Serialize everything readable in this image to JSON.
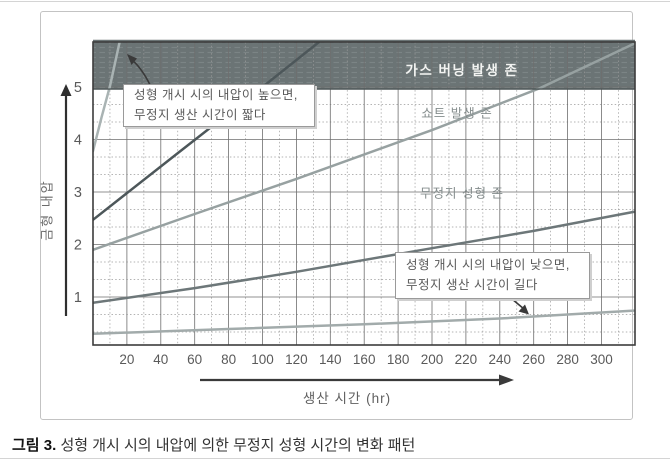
{
  "page": {
    "caption_number": "그림 3.",
    "caption_text": " 성형 개시 시의 내압에 의한 무정지 성형 시간의 변화 패턴"
  },
  "chart_data": {
    "type": "line",
    "title": "",
    "xlabel": "생산 시간 (hr)",
    "ylabel": "금형 내압",
    "xlim": [
      0,
      320
    ],
    "ylim": [
      0,
      5.9
    ],
    "x_ticks": [
      20,
      40,
      60,
      80,
      100,
      120,
      140,
      160,
      180,
      200,
      220,
      240,
      260,
      280,
      300
    ],
    "y_ticks": [
      1,
      2,
      3,
      4,
      5
    ],
    "grid": "major solid lines with dotted minor lines (x every 10 hr, y every 1/3 unit)",
    "legend": "none",
    "zones": [
      {
        "name": "gas-burning-zone",
        "label": "가스 버닝 발생 존",
        "band_y_from": 4.96,
        "band_y_to": 5.9,
        "fill": "#6b7475",
        "label_color": "#f3f4f2"
      },
      {
        "name": "short-shot-zone",
        "label": "쇼트 발생 존",
        "label_at_x": 214,
        "label_at_y": 4.52,
        "label_color": "#858d8d"
      },
      {
        "name": "non-stop-molding-zone",
        "label": "무정지 성형 존",
        "label_at_x": 218,
        "label_at_y": 3.0,
        "label_color": "#858d8d"
      }
    ],
    "series": [
      {
        "name": "line-1-highest-start-pressure",
        "color": "#a9b3b3",
        "width": 2.5,
        "points": [
          [
            0,
            3.78
          ],
          [
            5,
            4.42
          ],
          [
            10,
            5.02
          ],
          [
            16,
            5.9
          ]
        ]
      },
      {
        "name": "line-2",
        "color": "#4d575a",
        "width": 2.5,
        "points": [
          [
            0,
            2.47
          ],
          [
            50,
            3.74
          ],
          [
            100,
            5.0
          ],
          [
            135,
            5.9
          ]
        ]
      },
      {
        "name": "line-3",
        "color": "#97a1a1",
        "width": 2.5,
        "points": [
          [
            0,
            1.9
          ],
          [
            60,
            2.58
          ],
          [
            120,
            3.25
          ],
          [
            200,
            4.18
          ],
          [
            263,
            4.97
          ],
          [
            319,
            5.82
          ]
        ]
      },
      {
        "name": "line-4",
        "color": "#6d7779",
        "width": 2.5,
        "points": [
          [
            0,
            0.89
          ],
          [
            60,
            1.17
          ],
          [
            120,
            1.48
          ],
          [
            200,
            1.93
          ],
          [
            260,
            2.26
          ],
          [
            319,
            2.62
          ]
        ]
      },
      {
        "name": "line-5-lowest-start-pressure",
        "color": "#a2abab",
        "width": 2.5,
        "points": [
          [
            0,
            0.3
          ],
          [
            80,
            0.39
          ],
          [
            160,
            0.48
          ],
          [
            240,
            0.59
          ],
          [
            319,
            0.74
          ]
        ]
      }
    ],
    "annotations": [
      {
        "name": "high-pressure-note",
        "lines": [
          "성형 개시 시의 내압이 높으면,",
          "무정지 생산 시간이 짧다"
        ],
        "arrow_points_to": "steep line 1 near top-left"
      },
      {
        "name": "low-pressure-note",
        "lines": [
          "성형 개시 시의 내압이 낮으면,",
          "무정지 생산 시간이 길다"
        ],
        "arrow_points_to": "flat bottom line 5 near x=260"
      }
    ]
  }
}
